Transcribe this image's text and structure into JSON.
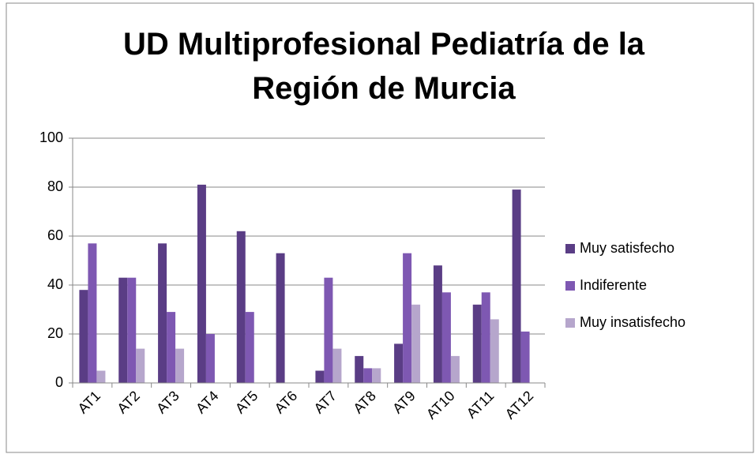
{
  "chart_data": {
    "type": "bar",
    "title": "UD Multiprofesional Pediatría de la Región de Murcia",
    "categories": [
      "AT1",
      "AT2",
      "AT3",
      "AT4",
      "AT5",
      "AT6",
      "AT7",
      "AT8",
      "AT9",
      "AT10",
      "AT11",
      "AT12"
    ],
    "series": [
      {
        "name": "Muy satisfecho",
        "color": "#5a3d85",
        "values": [
          38,
          43,
          57,
          81,
          62,
          53,
          5,
          11,
          16,
          48,
          32,
          79
        ]
      },
      {
        "name": "Indiferente",
        "color": "#7e58b2",
        "values": [
          57,
          43,
          29,
          20,
          29,
          0,
          43,
          6,
          53,
          37,
          37,
          21
        ]
      },
      {
        "name": "Muy insatisfecho",
        "color": "#b6a6cc",
        "values": [
          5,
          14,
          14,
          0,
          0,
          0,
          14,
          6,
          32,
          11,
          26,
          0
        ]
      }
    ],
    "ylim": [
      0,
      100
    ],
    "yticks": [
      0,
      20,
      40,
      60,
      80,
      100
    ],
    "grid": true,
    "legend": "right"
  }
}
